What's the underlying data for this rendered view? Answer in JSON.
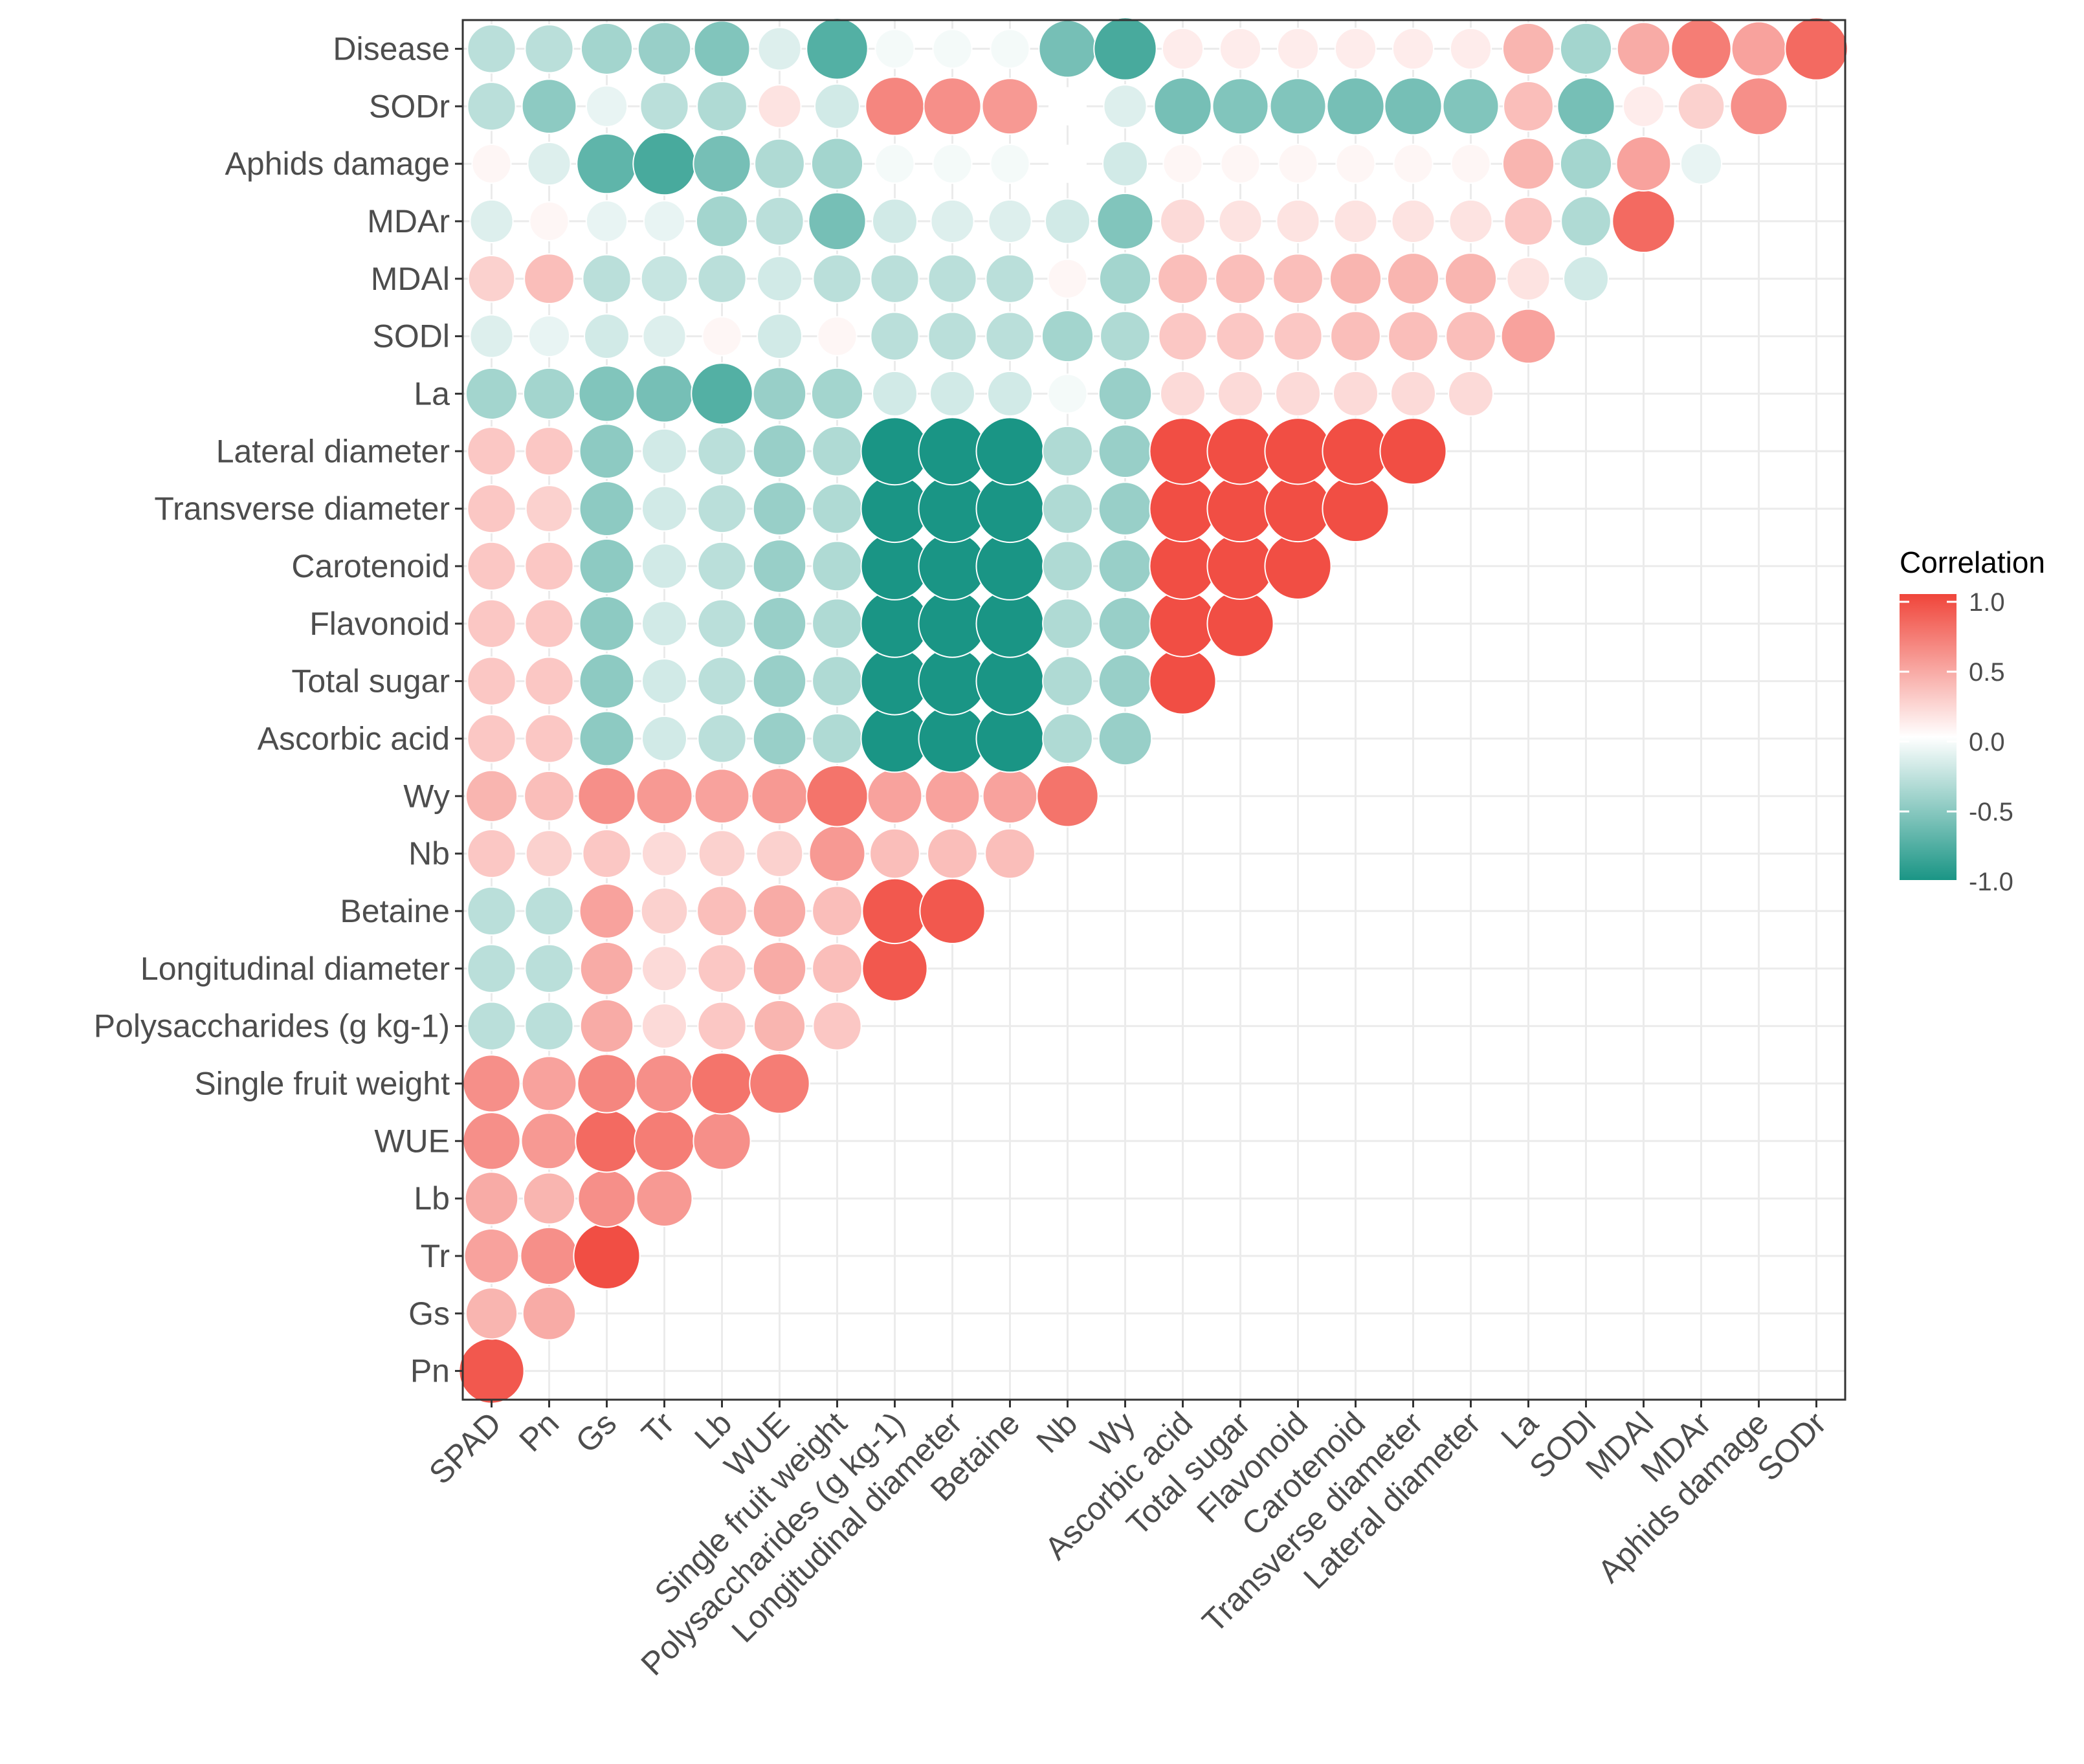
{
  "chart_data": {
    "type": "heatmap",
    "style": "circle correlogram, lower triangle; circle size and color encode correlation",
    "x_labels": [
      "SPAD",
      "Pn",
      "Gs",
      "Tr",
      "Lb",
      "WUE",
      "Single fruit weight",
      "Polysaccharides (g kg-1)",
      "Longitudinal diameter",
      "Betaine",
      "Nb",
      "Wy",
      "Ascorbic acid",
      "Total sugar",
      "Flavonoid",
      "Carotenoid",
      "Transverse diameter",
      "Lateral diameter",
      "La",
      "SODl",
      "MDAl",
      "MDAr",
      "Aphids damage",
      "SODr"
    ],
    "y_labels": [
      "Pn",
      "Gs",
      "Tr",
      "Lb",
      "WUE",
      "Single fruit weight",
      "Polysaccharides (g kg-1)",
      "Longitudinal diameter",
      "Betaine",
      "Nb",
      "Wy",
      "Ascorbic acid",
      "Total sugar",
      "Flavonoid",
      "Carotenoid",
      "Transverse diameter",
      "Lateral diameter",
      "La",
      "SODl",
      "MDAl",
      "MDAr",
      "Aphids damage",
      "SODr",
      "Disease"
    ],
    "values": [
      [
        0.9
      ],
      [
        0.4,
        0.45
      ],
      [
        0.5,
        0.6,
        0.95
      ],
      [
        0.45,
        0.4,
        0.6,
        0.55
      ],
      [
        0.6,
        0.55,
        0.8,
        0.7,
        0.6
      ],
      [
        0.6,
        0.5,
        0.65,
        0.6,
        0.75,
        0.7
      ],
      [
        -0.3,
        -0.3,
        0.45,
        0.2,
        0.3,
        0.4,
        0.3
      ],
      [
        -0.3,
        -0.3,
        0.45,
        0.2,
        0.3,
        0.45,
        0.35,
        0.9
      ],
      [
        -0.3,
        -0.3,
        0.5,
        0.25,
        0.35,
        0.45,
        0.35,
        0.9,
        0.9
      ],
      [
        0.3,
        0.25,
        0.3,
        0.2,
        0.25,
        0.25,
        0.55,
        0.35,
        0.35,
        0.35
      ],
      [
        0.4,
        0.35,
        0.6,
        0.55,
        0.5,
        0.55,
        0.75,
        0.5,
        0.5,
        0.5,
        0.75
      ],
      [
        0.3,
        0.3,
        -0.5,
        -0.2,
        -0.3,
        -0.45,
        -0.35,
        -1,
        -1,
        -1,
        -0.35,
        -0.45
      ],
      [
        0.3,
        0.3,
        -0.5,
        -0.2,
        -0.3,
        -0.45,
        -0.35,
        -1,
        -1,
        -1,
        -0.35,
        -0.45,
        0.95
      ],
      [
        0.3,
        0.3,
        -0.5,
        -0.2,
        -0.3,
        -0.45,
        -0.35,
        -1,
        -1,
        -1,
        -0.35,
        -0.45,
        0.95,
        0.95
      ],
      [
        0.3,
        0.3,
        -0.5,
        -0.2,
        -0.3,
        -0.45,
        -0.35,
        -1,
        -1,
        -1,
        -0.35,
        -0.45,
        0.95,
        0.95,
        0.95
      ],
      [
        0.3,
        0.25,
        -0.5,
        -0.2,
        -0.3,
        -0.45,
        -0.35,
        -1,
        -1,
        -1,
        -0.35,
        -0.45,
        0.95,
        0.95,
        0.95,
        0.95
      ],
      [
        0.3,
        0.3,
        -0.5,
        -0.2,
        -0.3,
        -0.45,
        -0.35,
        -1,
        -1,
        -1,
        -0.35,
        -0.45,
        0.95,
        0.95,
        0.95,
        0.95,
        0.95
      ],
      [
        -0.4,
        -0.4,
        -0.55,
        -0.6,
        -0.75,
        -0.45,
        -0.4,
        -0.2,
        -0.2,
        -0.2,
        -0.05,
        -0.45,
        0.2,
        0.2,
        0.2,
        0.2,
        0.2,
        0.2
      ],
      [
        -0.15,
        -0.1,
        -0.2,
        -0.15,
        0.05,
        -0.2,
        0.05,
        -0.3,
        -0.3,
        -0.3,
        -0.4,
        -0.35,
        0.3,
        0.3,
        0.3,
        0.35,
        0.35,
        0.35,
        0.5
      ],
      [
        0.25,
        0.35,
        -0.3,
        -0.25,
        -0.3,
        -0.2,
        -0.3,
        -0.3,
        -0.3,
        -0.3,
        0.05,
        -0.4,
        0.35,
        0.35,
        0.35,
        0.4,
        0.4,
        0.4,
        0.15,
        -0.2
      ],
      [
        -0.15,
        0.05,
        -0.1,
        -0.1,
        -0.4,
        -0.3,
        -0.6,
        -0.2,
        -0.15,
        -0.15,
        -0.2,
        -0.55,
        0.2,
        0.15,
        0.15,
        0.15,
        0.15,
        0.15,
        0.3,
        -0.35,
        0.8
      ],
      [
        0.05,
        -0.15,
        -0.7,
        -0.8,
        -0.6,
        -0.35,
        -0.4,
        -0.05,
        -0.05,
        -0.05,
        0,
        -0.2,
        0.05,
        0.05,
        0.05,
        0.05,
        0.05,
        0.05,
        0.4,
        -0.4,
        0.5,
        -0.1
      ],
      [
        -0.3,
        -0.5,
        -0.1,
        -0.3,
        -0.35,
        0.15,
        -0.2,
        0.65,
        0.6,
        0.55,
        0,
        -0.15,
        -0.6,
        -0.55,
        -0.55,
        -0.6,
        -0.6,
        -0.55,
        0.35,
        -0.6,
        0.1,
        0.25,
        0.6
      ],
      [
        -0.3,
        -0.3,
        -0.4,
        -0.45,
        -0.55,
        -0.15,
        -0.75,
        -0.05,
        -0.05,
        -0.05,
        -0.6,
        -0.8,
        0.1,
        0.1,
        0.1,
        0.1,
        0.1,
        0.1,
        0.4,
        -0.4,
        0.45,
        0.7,
        0.5,
        0.8
      ]
    ],
    "legend": {
      "title": "Correlation",
      "ticks": [
        "1.0",
        "0.5",
        "0.0",
        "-0.5",
        "-1.0"
      ],
      "placement": "right",
      "range": [
        -1,
        1
      ]
    },
    "colors": {
      "low": "#1A9585",
      "mid": "#FFFFFF",
      "high": "#F0453A"
    },
    "grid": true
  }
}
